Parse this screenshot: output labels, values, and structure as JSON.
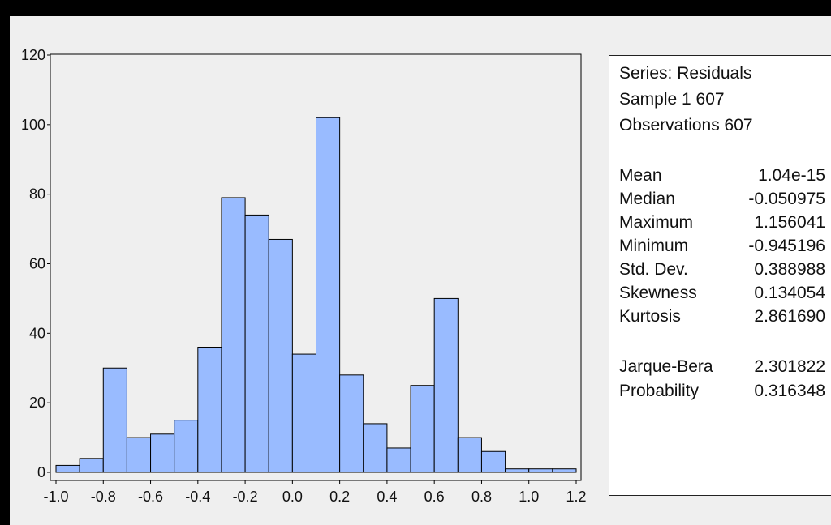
{
  "chart_data": {
    "type": "bar",
    "bin_edges": [
      -1.0,
      -0.9,
      -0.8,
      -0.7,
      -0.6,
      -0.5,
      -0.4,
      -0.3,
      -0.2,
      -0.1,
      0.0,
      0.1,
      0.2,
      0.3,
      0.4,
      0.5,
      0.6,
      0.7,
      0.8,
      0.9,
      1.0,
      1.1,
      1.2
    ],
    "values": [
      2,
      4,
      30,
      10,
      11,
      15,
      36,
      79,
      74,
      67,
      34,
      102,
      28,
      14,
      7,
      25,
      50,
      10,
      6,
      1,
      1,
      1
    ],
    "x_ticks": [
      "-1.0",
      "-0.8",
      "-0.6",
      "-0.4",
      "-0.2",
      "0.0",
      "0.2",
      "0.4",
      "0.6",
      "0.8",
      "1.0",
      "1.2"
    ],
    "y_ticks": [
      "0",
      "20",
      "40",
      "60",
      "80",
      "100",
      "120"
    ],
    "xlim": [
      -1.0,
      1.2
    ],
    "ylim": [
      0,
      120
    ],
    "grid": false,
    "bar_color": "#99bbff",
    "edge_color": "#000000"
  },
  "stats": {
    "series": "Series: Residuals",
    "sample": "Sample 1 607",
    "observations": "Observations 607",
    "rows": [
      {
        "label": "Mean",
        "value": "1.04e-15"
      },
      {
        "label": "Median",
        "value": "-0.050975"
      },
      {
        "label": "Maximum",
        "value": "1.156041"
      },
      {
        "label": "Minimum",
        "value": "-0.945196"
      },
      {
        "label": "Std. Dev.",
        "value": "0.388988"
      },
      {
        "label": "Skewness",
        "value": "0.134054"
      },
      {
        "label": "Kurtosis",
        "value": "2.861690"
      }
    ],
    "test_rows": [
      {
        "label": "Jarque-Bera",
        "value": "2.301822"
      },
      {
        "label": "Probability",
        "value": "0.316348"
      }
    ]
  }
}
